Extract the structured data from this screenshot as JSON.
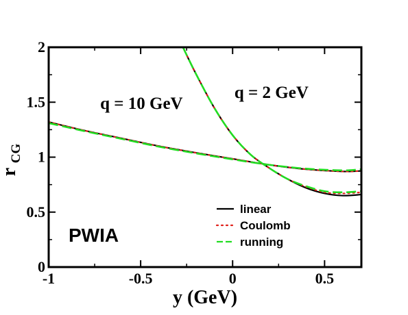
{
  "chart_data": {
    "type": "line",
    "xlabel": "y (GeV)",
    "ylabel_main": "r",
    "ylabel_sub": "CG",
    "xlim": [
      -1,
      0.7
    ],
    "ylim": [
      0,
      2
    ],
    "xticks": [
      {
        "value": -1,
        "label": "-1"
      },
      {
        "value": -0.5,
        "label": "-0.5"
      },
      {
        "value": 0,
        "label": "0"
      },
      {
        "value": 0.5,
        "label": "0.5"
      }
    ],
    "yticks": [
      {
        "value": 0,
        "label": "0"
      },
      {
        "value": 0.5,
        "label": "0.5"
      },
      {
        "value": 1,
        "label": "1"
      },
      {
        "value": 1.5,
        "label": "1.5"
      },
      {
        "value": 2,
        "label": "2"
      }
    ],
    "annotations": [
      {
        "text": "q = 10 GeV",
        "x": -0.72,
        "y": 1.44
      },
      {
        "text": "q = 2 GeV",
        "x": 0.01,
        "y": 1.54
      }
    ],
    "panel_label": "PWIA",
    "legend": [
      {
        "name": "linear",
        "color": "#000000",
        "dash": "solid"
      },
      {
        "name": "Coulomb",
        "color": "#e0201a",
        "dash": "dotted"
      },
      {
        "name": "running",
        "color": "#22dd22",
        "dash": "dashed"
      }
    ],
    "curves": [
      {
        "label": "q = 10 GeV",
        "series": [
          {
            "name": "linear",
            "x": [
              -1,
              -0.8,
              -0.6,
              -0.4,
              -0.2,
              0,
              0.2,
              0.4,
              0.6,
              0.7
            ],
            "y": [
              1.32,
              1.24,
              1.17,
              1.1,
              1.04,
              0.985,
              0.93,
              0.89,
              0.87,
              0.875
            ]
          },
          {
            "name": "Coulomb",
            "x": [
              -1,
              -0.8,
              -0.6,
              -0.4,
              -0.2,
              0,
              0.2,
              0.4,
              0.6,
              0.7
            ],
            "y": [
              1.32,
              1.24,
              1.17,
              1.1,
              1.04,
              0.985,
              0.93,
              0.89,
              0.87,
              0.875
            ]
          },
          {
            "name": "running",
            "x": [
              -1,
              -0.8,
              -0.6,
              -0.4,
              -0.2,
              0,
              0.2,
              0.4,
              0.6,
              0.7
            ],
            "y": [
              1.31,
              1.235,
              1.165,
              1.095,
              1.035,
              0.98,
              0.93,
              0.895,
              0.88,
              0.89
            ]
          }
        ]
      },
      {
        "label": "q = 2 GeV",
        "series": [
          {
            "name": "linear",
            "x": [
              -0.27,
              -0.2,
              -0.1,
              0,
              0.1,
              0.2,
              0.3,
              0.4,
              0.5,
              0.6,
              0.7
            ],
            "y": [
              2.0,
              1.76,
              1.45,
              1.2,
              1.02,
              0.9,
              0.8,
              0.72,
              0.67,
              0.65,
              0.66
            ]
          },
          {
            "name": "Coulomb",
            "x": [
              -0.27,
              -0.2,
              -0.1,
              0,
              0.1,
              0.2,
              0.3,
              0.4,
              0.5,
              0.6,
              0.7
            ],
            "y": [
              2.0,
              1.76,
              1.45,
              1.2,
              1.02,
              0.9,
              0.8,
              0.73,
              0.68,
              0.67,
              0.68
            ]
          },
          {
            "name": "running",
            "x": [
              -0.27,
              -0.2,
              -0.1,
              0,
              0.1,
              0.2,
              0.3,
              0.4,
              0.5,
              0.6,
              0.7
            ],
            "y": [
              2.0,
              1.76,
              1.45,
              1.2,
              1.02,
              0.9,
              0.8,
              0.735,
              0.69,
              0.68,
              0.69
            ]
          }
        ]
      }
    ]
  }
}
